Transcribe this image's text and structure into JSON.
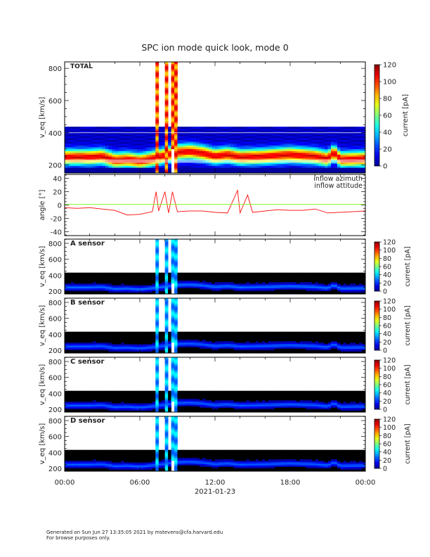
{
  "title": "SPC ion mode quick look, mode 0",
  "footer": {
    "line1": "Generated on Sun Jun 27 13:35:05 2021 by mstevens@cfa.harvard.edu",
    "line2": "For browse purposes only."
  },
  "colors": {
    "azimuth": "#ff2020",
    "attitude": "#80ff20",
    "axis": "#000000"
  },
  "chart_data": [
    {
      "type": "heatmap",
      "panel_label": "TOTAL",
      "ylabel": "v_eq [km/s]",
      "yticks": [
        "200",
        "400",
        "600",
        "800"
      ],
      "ylim": [
        150,
        840
      ],
      "colorbar": {
        "label": "current [pA]",
        "ticks": [
          "0",
          "20",
          "40",
          "60",
          "80",
          "100",
          "120"
        ],
        "range": [
          0,
          120
        ]
      },
      "peak_current": 100,
      "background_current": 8
    },
    {
      "type": "line",
      "ylabel": "angle [°]",
      "yticks": [
        "-40",
        "-20",
        "0",
        "20",
        "40"
      ],
      "ylim": [
        -46,
        46
      ],
      "legend": [
        "inflow azimuth",
        "inflow attitude"
      ],
      "legend_position": "top-right",
      "x_hours": [
        0,
        1,
        2,
        3,
        4,
        5,
        6,
        7,
        7.3,
        7.5,
        8,
        8.3,
        8.6,
        9,
        10,
        11,
        12,
        13,
        13.8,
        14,
        14.6,
        15,
        16,
        17,
        18,
        19,
        20,
        21,
        22,
        23,
        24
      ],
      "series": [
        {
          "name": "inflow azimuth",
          "values": [
            -4,
            -5,
            -4,
            -6,
            -8,
            -15,
            -14,
            -10,
            20,
            -9,
            20,
            -12,
            20,
            -10,
            -9,
            -9,
            -11,
            -12,
            22,
            -12,
            15,
            -11,
            -9,
            -7,
            -8,
            -8,
            -6,
            -12,
            -11,
            -10,
            -9
          ]
        },
        {
          "name": "inflow attitude",
          "values": [
            1,
            1,
            1,
            1,
            1,
            1,
            1,
            1,
            1,
            1,
            1,
            1,
            1,
            1,
            1,
            1,
            1,
            1,
            1,
            1,
            1,
            1,
            1,
            1,
            1,
            1,
            1,
            1,
            1,
            1,
            1
          ]
        }
      ]
    },
    {
      "type": "heatmap",
      "panel_label": "A sensor",
      "ylabel": "v_eq [km/s]",
      "yticks": [
        "200",
        "400",
        "600",
        "800"
      ],
      "ylim": [
        165,
        853
      ],
      "colorbar": {
        "label": "current [pA]",
        "ticks": [
          "0",
          "20",
          "40",
          "60",
          "80",
          "100",
          "120"
        ],
        "range": [
          0,
          120
        ]
      },
      "peak_current": 28,
      "background_current": 0
    },
    {
      "type": "heatmap",
      "panel_label": "B sensor",
      "ylabel": "v_eq [km/s]",
      "yticks": [
        "200",
        "400",
        "600",
        "800"
      ],
      "ylim": [
        165,
        853
      ],
      "colorbar": {
        "label": "current [pA]",
        "ticks": [
          "0",
          "20",
          "40",
          "60",
          "80",
          "100",
          "120"
        ],
        "range": [
          0,
          120
        ]
      },
      "peak_current": 26,
      "background_current": 0
    },
    {
      "type": "heatmap",
      "panel_label": "C sensor",
      "ylabel": "v_eq [km/s]",
      "yticks": [
        "200",
        "400",
        "600",
        "800"
      ],
      "ylim": [
        165,
        853
      ],
      "colorbar": {
        "label": "current [pA]",
        "ticks": [
          "0",
          "20",
          "40",
          "60",
          "80",
          "100",
          "120"
        ],
        "range": [
          0,
          120
        ]
      },
      "peak_current": 26,
      "background_current": 0
    },
    {
      "type": "heatmap",
      "panel_label": "D sensor",
      "ylabel": "v_eq [km/s]",
      "yticks": [
        "200",
        "400",
        "600",
        "800"
      ],
      "ylim": [
        165,
        853
      ],
      "colorbar": {
        "label": "current [pA]",
        "ticks": [
          "0",
          "20",
          "40",
          "60",
          "80",
          "100",
          "120"
        ],
        "range": [
          0,
          120
        ]
      },
      "peak_current": 26,
      "background_current": 0
    }
  ],
  "spectrum": {
    "band_center_hours": [
      0,
      2,
      3,
      4,
      5,
      6,
      7,
      9,
      10,
      11,
      12,
      13,
      14,
      16,
      18,
      20,
      21,
      21.5,
      22,
      24
    ],
    "band_center_kms": [
      250,
      250,
      255,
      230,
      235,
      225,
      240,
      280,
      285,
      275,
      255,
      265,
      250,
      255,
      265,
      255,
      240,
      280,
      235,
      240
    ],
    "data_edge_kms": 440,
    "burst_intervals_hours": [
      [
        7.3,
        7.5
      ],
      [
        7.9,
        8.3
      ],
      [
        8.6,
        9.0
      ]
    ]
  },
  "xaxis": {
    "ticks": [
      "00:00",
      "06:00",
      "12:00",
      "18:00",
      "00:00"
    ],
    "date": "2021-01-23",
    "range_hours": [
      0,
      24
    ]
  }
}
